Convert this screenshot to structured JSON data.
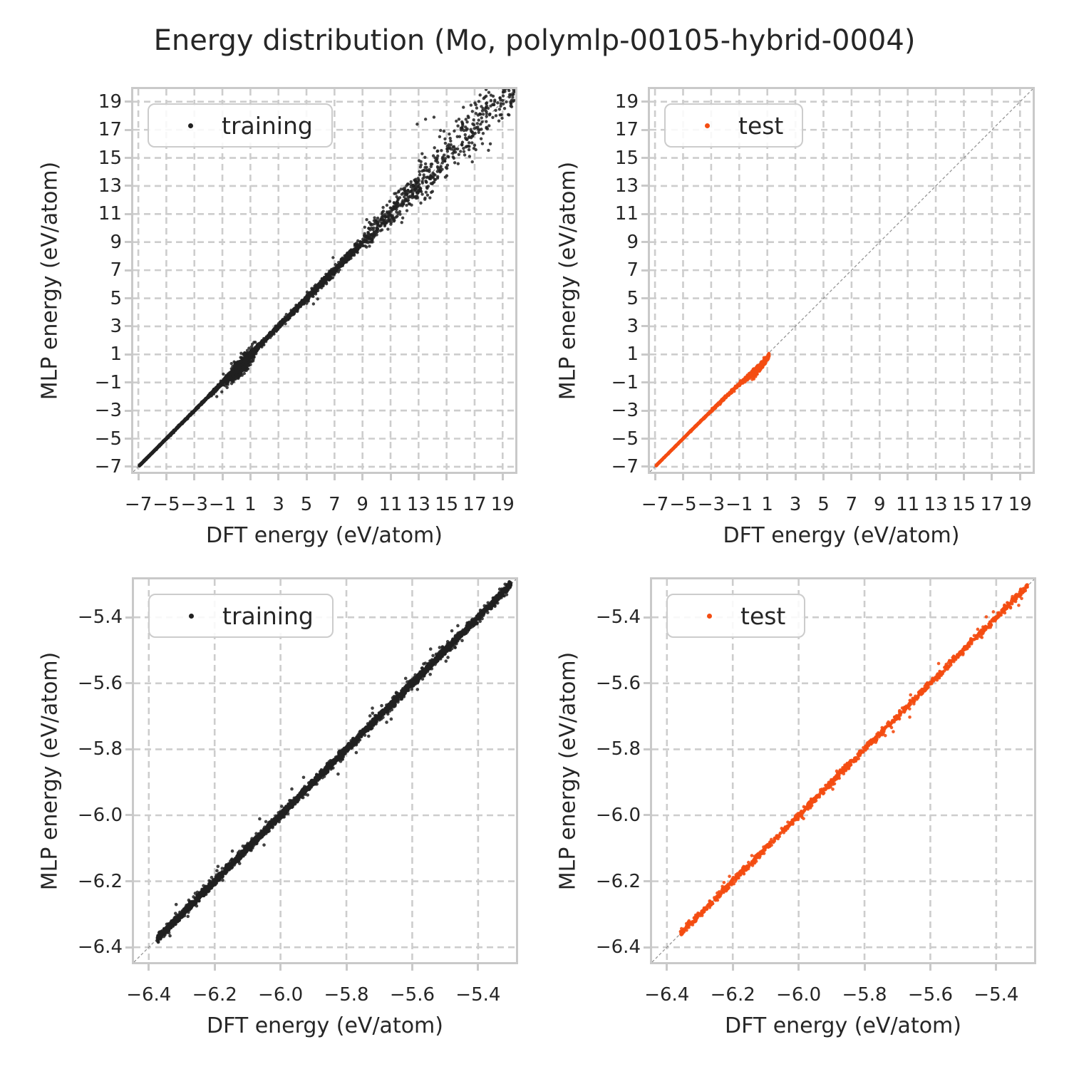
{
  "title": "Energy distribution (Mo, polymlp-00105-hybrid-0004)",
  "colors": {
    "training": "#212121",
    "test": "#f44d12",
    "grid": "#cdcdcd",
    "spine": "#c9c9c9",
    "diagonal": "#8f8f8f",
    "text": "#262626",
    "legend_border": "#cccccc"
  },
  "chart_data": [
    {
      "id": "training-full",
      "type": "scatter",
      "legend_label": "training",
      "series_color": "#212121",
      "marker_alpha": 0.85,
      "marker_radius": 2.2,
      "xlabel": "DFT energy (eV/atom)",
      "ylabel": "MLP energy (eV/atom)",
      "xlim": [
        -7.36,
        19.9
      ],
      "ylim": [
        -7.36,
        19.9
      ],
      "tick_values": [
        -7,
        -5,
        -3,
        -1,
        1,
        3,
        5,
        7,
        9,
        11,
        13,
        15,
        17,
        19
      ],
      "tick_labels": [
        "−7",
        "−5",
        "−3",
        "−1",
        "1",
        "3",
        "5",
        "7",
        "9",
        "11",
        "13",
        "15",
        "17",
        "19"
      ],
      "grid": true,
      "diagonal": true,
      "legend_pos": "upper left",
      "seed": 11,
      "segments": [
        {
          "x0": -6.93,
          "x1": -5.0,
          "n": 800,
          "sy": 0.018,
          "b0": 0,
          "b1": 0
        },
        {
          "x0": -5.0,
          "x1": -2.0,
          "n": 650,
          "sy": 0.03,
          "b0": 0,
          "b1": 0
        },
        {
          "x0": -2.0,
          "x1": -0.8,
          "n": 350,
          "sy": 0.06,
          "b0": 0,
          "b1": 0
        },
        {
          "x0": -0.8,
          "x1": 1.1,
          "n": 500,
          "sy": 0.12,
          "b0": -0.05,
          "b1": -0.05
        },
        {
          "x0": 1.1,
          "x1": 5.0,
          "n": 480,
          "sy": 0.1,
          "b0": 0,
          "b1": 0
        },
        {
          "x0": 5.0,
          "x1": 9.0,
          "n": 380,
          "sy": 0.17,
          "b0": 0,
          "b1": 0
        },
        {
          "x0": 9.0,
          "x1": 13.0,
          "n": 280,
          "sy": 0.45,
          "b0": 0,
          "b1": 0.1
        },
        {
          "x0": 13.0,
          "x1": 16.5,
          "n": 170,
          "sy": 0.85,
          "b0": 0.1,
          "b1": 0.3
        },
        {
          "x0": 16.5,
          "x1": 19.9,
          "n": 150,
          "sy": 0.9,
          "b0": 0.3,
          "b1": 0.4
        }
      ],
      "clusters": [
        {
          "cx": 0.4,
          "sx": 0.45,
          "sy": 0.28,
          "bias": -0.18,
          "n": 600
        }
      ],
      "outliers": [
        [
          5.5,
          4.6
        ],
        [
          5.8,
          4.95
        ],
        [
          12.9,
          17.4
        ],
        [
          13.5,
          17.75
        ],
        [
          14.1,
          17.9
        ],
        [
          11.8,
          10.4
        ],
        [
          16.2,
          18.6
        ],
        [
          17.0,
          15.9
        ],
        [
          9.3,
          10.6
        ],
        [
          6.9,
          7.9
        ],
        [
          -1.4,
          -2.0
        ]
      ]
    },
    {
      "id": "test-full",
      "type": "scatter",
      "legend_label": "test",
      "series_color": "#f44d12",
      "marker_alpha": 0.9,
      "marker_radius": 2.2,
      "xlabel": "DFT energy (eV/atom)",
      "ylabel": "MLP energy (eV/atom)",
      "xlim": [
        -7.36,
        19.9
      ],
      "ylim": [
        -7.36,
        19.9
      ],
      "tick_values": [
        -7,
        -5,
        -3,
        -1,
        1,
        3,
        5,
        7,
        9,
        11,
        13,
        15,
        17,
        19
      ],
      "tick_labels": [
        "−7",
        "−5",
        "−3",
        "−1",
        "1",
        "3",
        "5",
        "7",
        "9",
        "11",
        "13",
        "15",
        "17",
        "19"
      ],
      "grid": true,
      "diagonal": true,
      "legend_pos": "upper left",
      "seed": 23,
      "segments": [
        {
          "x0": -6.93,
          "x1": -4.5,
          "n": 620,
          "sy": 0.012,
          "b0": 0,
          "b1": 0
        },
        {
          "x0": -4.5,
          "x1": -3.0,
          "n": 280,
          "sy": 0.02,
          "b0": 0,
          "b1": -0.03
        },
        {
          "x0": -3.0,
          "x1": -1.0,
          "n": 230,
          "sy": 0.05,
          "b0": -0.03,
          "b1": -0.12
        },
        {
          "x0": -1.0,
          "x1": 0.9,
          "n": 200,
          "sy": 0.09,
          "b0": -0.12,
          "b1": -0.38
        },
        {
          "x0": 0.55,
          "x1": 1.15,
          "n": 60,
          "sy": 0.1,
          "b0": -0.3,
          "b1": -0.2
        }
      ],
      "clusters": [
        {
          "cx": 0.32,
          "sx": 0.25,
          "sy": 0.13,
          "bias": -0.42,
          "n": 150
        }
      ],
      "outliers": [
        [
          -2.1,
          -2.25
        ],
        [
          -1.6,
          -1.78
        ],
        [
          0.15,
          -0.45
        ]
      ]
    },
    {
      "id": "training-zoom",
      "type": "scatter",
      "legend_label": "training",
      "series_color": "#212121",
      "marker_alpha": 0.85,
      "marker_radius": 2.3,
      "xlabel": "DFT energy (eV/atom)",
      "ylabel": "MLP energy (eV/atom)",
      "xlim": [
        -6.445,
        -5.285
      ],
      "ylim": [
        -6.445,
        -5.285
      ],
      "tick_values": [
        -6.4,
        -6.2,
        -6.0,
        -5.8,
        -5.6,
        -5.4
      ],
      "tick_labels": [
        "−6.4",
        "−6.2",
        "−6.0",
        "−5.8",
        "−5.6",
        "−5.4"
      ],
      "grid": true,
      "diagonal": true,
      "legend_pos": "upper left",
      "seed": 37,
      "segments": [
        {
          "x0": -6.375,
          "x1": -5.3,
          "n": 3200,
          "sy": 0.006,
          "b0": 0,
          "b1": 0
        },
        {
          "x0": -6.36,
          "x1": -5.31,
          "n": 140,
          "sy": 0.018,
          "b0": 0,
          "b1": 0
        }
      ],
      "clusters": [],
      "outliers": [
        [
          -6.19,
          -6.155
        ],
        [
          -5.93,
          -5.885
        ],
        [
          -5.62,
          -5.585
        ],
        [
          -6.05,
          -6.09
        ],
        [
          -5.77,
          -5.81
        ]
      ]
    },
    {
      "id": "test-zoom",
      "type": "scatter",
      "legend_label": "test",
      "series_color": "#f44d12",
      "marker_alpha": 0.9,
      "marker_radius": 2.3,
      "xlabel": "DFT energy (eV/atom)",
      "ylabel": "MLP energy (eV/atom)",
      "xlim": [
        -6.445,
        -5.285
      ],
      "ylim": [
        -6.445,
        -5.285
      ],
      "tick_values": [
        -6.4,
        -6.2,
        -6.0,
        -5.8,
        -5.6,
        -5.4
      ],
      "tick_labels": [
        "−6.4",
        "−6.2",
        "−6.0",
        "−5.8",
        "−5.6",
        "−5.4"
      ],
      "grid": true,
      "diagonal": true,
      "legend_pos": "upper left",
      "seed": 53,
      "segments": [
        {
          "x0": -6.36,
          "x1": -5.305,
          "n": 1150,
          "sy": 0.005,
          "b0": 0,
          "b1": 0
        },
        {
          "x0": -6.35,
          "x1": -5.32,
          "n": 60,
          "sy": 0.014,
          "b0": 0,
          "b1": 0
        }
      ],
      "clusters": [],
      "outliers": [
        [
          -6.21,
          -6.185
        ],
        [
          -5.985,
          -6.01
        ],
        [
          -5.66,
          -5.635
        ]
      ]
    }
  ]
}
